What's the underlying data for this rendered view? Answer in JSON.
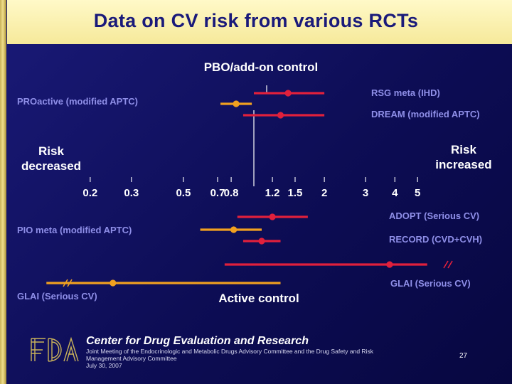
{
  "title": "Data on CV risk from various RCTs",
  "footer": {
    "center_name": "Center for Drug Evaluation and Research",
    "meeting": "Joint Meeting of the Endocrinologic and Metabolic Drugs Advisory Committee and the Drug Safety and Risk Management Advisory Committee",
    "date": "July 30, 2007",
    "page_number": "27",
    "logo_text": "FDA"
  },
  "colors": {
    "background": "#0d0d55",
    "title_bg": "#f6e99a",
    "title_text": "#1a1a7a",
    "placebo_series": "#e0203c",
    "active_series": "#f0a020",
    "label_text": "#8f8fe8",
    "axis_text": "#ffffff"
  },
  "chart_data": {
    "type": "forest",
    "x_scale": "log",
    "reference_value": 1.0,
    "ticks": [
      {
        "value": 0.2,
        "label": "0.2"
      },
      {
        "value": 0.3,
        "label": "0.3"
      },
      {
        "value": 0.5,
        "label": "0.5"
      },
      {
        "value": 0.7,
        "label": "0.7"
      },
      {
        "value": 0.8,
        "label": "0.8"
      },
      {
        "value": 1.2,
        "label": "1.2"
      },
      {
        "value": 1.5,
        "label": "1.5"
      },
      {
        "value": 2,
        "label": "2"
      },
      {
        "value": 3,
        "label": "3"
      },
      {
        "value": 4,
        "label": "4"
      },
      {
        "value": 5,
        "label": "5"
      }
    ],
    "group_labels": {
      "placebo": "PBO/add-on control",
      "active": "Active control"
    },
    "direction_labels": {
      "left": [
        "Risk",
        "decreased"
      ],
      "right": [
        "Risk",
        "increased"
      ]
    },
    "series": [
      {
        "group": "placebo",
        "label": "RSG meta (IHD)",
        "point": 1.4,
        "ci_low": 1.0,
        "ci_high": 2.0,
        "color": "#e0203c"
      },
      {
        "group": "placebo",
        "label": "PROactive (modified APTC)",
        "point": 0.84,
        "ci_low": 0.72,
        "ci_high": 0.98,
        "color": "#f0a020"
      },
      {
        "group": "placebo",
        "label": "DREAM (modified APTC)",
        "point": 1.3,
        "ci_low": 0.9,
        "ci_high": 2.0,
        "color": "#e0203c"
      },
      {
        "group": "active",
        "label": "ADOPT (Serious CV)",
        "point": 1.2,
        "ci_low": 0.85,
        "ci_high": 1.7,
        "color": "#e0203c"
      },
      {
        "group": "active",
        "label": "PIO meta (modified APTC)",
        "point": 0.82,
        "ci_low": 0.59,
        "ci_high": 1.08,
        "color": "#f0a020"
      },
      {
        "group": "active",
        "label": "RECORD (CVD+CVH)",
        "point": 1.08,
        "ci_low": 0.9,
        "ci_high": 1.3,
        "color": "#e0203c"
      },
      {
        "group": "active",
        "label": "GLAI (Serious CV)",
        "point": 3.8,
        "ci_low": 0.75,
        "ci_high": 5.5,
        "color": "#e0203c",
        "truncated_high": true
      },
      {
        "group": "active",
        "label": "GLAI (Serious CV)",
        "point": 0.25,
        "ci_low": 0.13,
        "ci_high": 1.3,
        "color": "#f0a020",
        "truncated_low": true
      }
    ]
  }
}
